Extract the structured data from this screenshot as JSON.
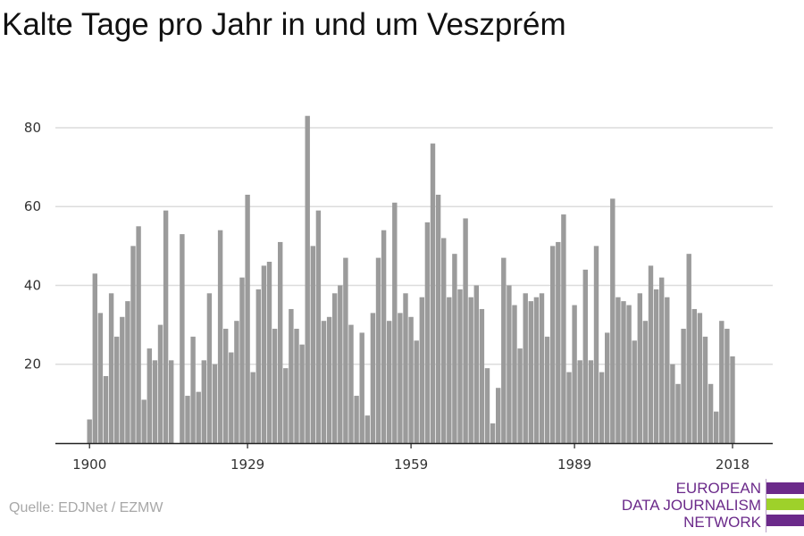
{
  "chart_data": {
    "type": "bar",
    "title": "Kalte Tage pro Jahr in und um Veszprém",
    "xlabel": "",
    "ylabel": "",
    "x_start": 1900,
    "ylim": [
      0,
      90
    ],
    "yticks": [
      20,
      40,
      60,
      80
    ],
    "xticks": [
      1900,
      1929,
      1959,
      1989,
      2018
    ],
    "grid": true,
    "legend": "none",
    "bar_color": "#9b9b9b",
    "values": [
      6,
      43,
      33,
      17,
      38,
      27,
      32,
      36,
      50,
      55,
      11,
      24,
      21,
      30,
      59,
      21,
      0,
      53,
      12,
      27,
      13,
      21,
      38,
      20,
      54,
      29,
      23,
      31,
      42,
      63,
      18,
      39,
      45,
      46,
      29,
      51,
      19,
      34,
      29,
      25,
      83,
      50,
      59,
      31,
      32,
      38,
      40,
      47,
      30,
      12,
      28,
      7,
      33,
      47,
      54,
      31,
      61,
      33,
      38,
      32,
      26,
      37,
      56,
      76,
      63,
      52,
      37,
      48,
      39,
      57,
      37,
      40,
      34,
      19,
      5,
      14,
      47,
      40,
      35,
      24,
      38,
      36,
      37,
      38,
      27,
      50,
      51,
      58,
      18,
      35,
      21,
      44,
      21,
      50,
      18,
      28,
      62,
      37,
      36,
      35,
      26,
      38,
      31,
      45,
      39,
      42,
      37,
      20,
      15,
      29,
      48,
      34,
      33,
      27,
      15,
      8,
      31,
      29,
      22
    ]
  },
  "source": "Quelle: EDJNet / EZMW",
  "logo": {
    "lines": [
      "EUROPEAN",
      "DATA JOURNALISM",
      "NETWORK"
    ],
    "colors": [
      "#6b2a8a",
      "#9ed12a",
      "#6b2a8a"
    ]
  }
}
